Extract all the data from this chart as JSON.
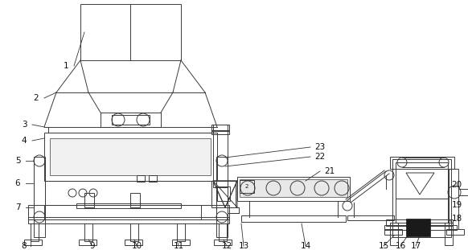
{
  "bg_color": "#ffffff",
  "line_color": "#3a3a3a",
  "dark_color": "#111111",
  "label_color": "#111111",
  "figsize": [
    5.82,
    3.11
  ],
  "dpi": 100
}
